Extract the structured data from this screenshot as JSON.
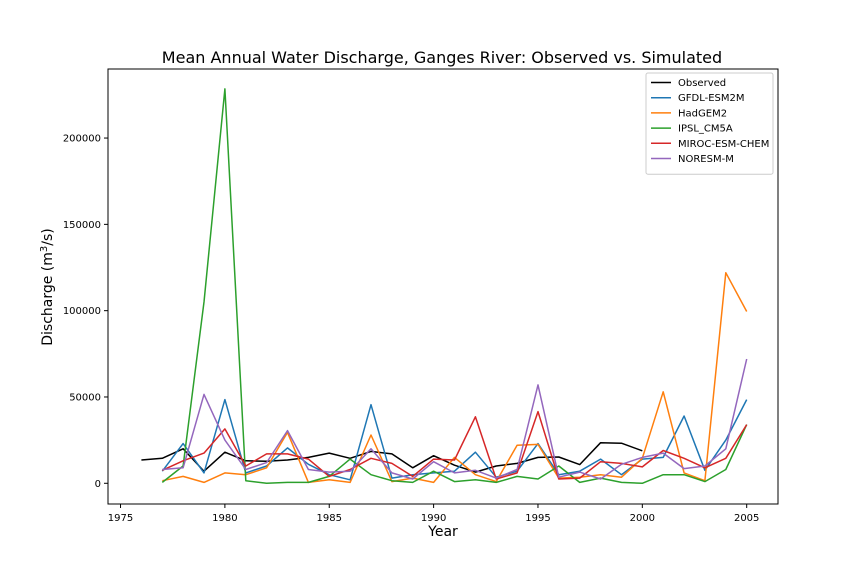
{
  "chart_data": {
    "type": "line",
    "title": "Mean Annual Water Discharge, Ganges River: Observed vs. Simulated",
    "xlabel": "Year",
    "ylabel_main": "Discharge (m",
    "ylabel_sup": "3",
    "ylabel_tail": "/s)",
    "xlim": [
      1974.4,
      2006.5
    ],
    "ylim": [
      -12000,
      240000
    ],
    "xticks": [
      1975,
      1980,
      1985,
      1990,
      1995,
      2000,
      2005
    ],
    "yticks": [
      0,
      50000,
      100000,
      150000,
      200000
    ],
    "legend_position": "top-right",
    "series": [
      {
        "name": "Observed",
        "color": "#000000",
        "x": [
          1976,
          1977,
          1978,
          1979,
          1980,
          1981,
          1982,
          1983,
          1984,
          1985,
          1986,
          1987,
          1988,
          1989,
          1990,
          1991,
          1992,
          1993,
          1994,
          1995,
          1996,
          1997,
          1998,
          1999,
          2000
        ],
        "y": [
          13500,
          14500,
          20000,
          7000,
          18000,
          13000,
          12800,
          13500,
          15000,
          17500,
          14500,
          18500,
          17000,
          9000,
          16000,
          10500,
          6500,
          10000,
          11500,
          15000,
          15200,
          10800,
          23500,
          23200,
          18800
        ]
      },
      {
        "name": "GFDL-ESM2M",
        "color": "#1f77b4",
        "x": [
          1977,
          1978,
          1979,
          1980,
          1981,
          1982,
          1983,
          1984,
          1985,
          1986,
          1987,
          1988,
          1989,
          1990,
          1991,
          1992,
          1993,
          1994,
          1995,
          1996,
          1997,
          1998,
          1999,
          2000,
          2001,
          2002,
          2003,
          2004,
          2005
        ],
        "y": [
          7000,
          23000,
          6000,
          48500,
          6000,
          10000,
          20500,
          11000,
          5000,
          2000,
          45500,
          3000,
          5000,
          6000,
          7000,
          18000,
          3500,
          7000,
          23000,
          5000,
          7000,
          14000,
          5000,
          14000,
          15000,
          39000,
          7500,
          25000,
          48500
        ]
      },
      {
        "name": "HadGEM2",
        "color": "#ff7f0e",
        "x": [
          1977,
          1978,
          1979,
          1980,
          1981,
          1982,
          1983,
          1984,
          1985,
          1986,
          1987,
          1988,
          1989,
          1990,
          1991,
          1992,
          1993,
          1994,
          1995,
          1996,
          1997,
          1998,
          1999,
          2000,
          2001,
          2002,
          2003,
          2004,
          2005
        ],
        "y": [
          1500,
          4000,
          500,
          6000,
          5000,
          9000,
          29500,
          500,
          2000,
          500,
          28000,
          1000,
          3000,
          500,
          15000,
          5000,
          1000,
          22000,
          22500,
          3000,
          3500,
          5000,
          3500,
          14500,
          53000,
          6000,
          1500,
          122000,
          99500
        ]
      },
      {
        "name": "IPSL_CM5A",
        "color": "#2ca02c",
        "x": [
          1977,
          1978,
          1979,
          1980,
          1981,
          1982,
          1983,
          1984,
          1985,
          1986,
          1987,
          1988,
          1989,
          1990,
          1991,
          1992,
          1993,
          1994,
          1995,
          1996,
          1997,
          1998,
          1999,
          2000,
          2001,
          2002,
          2003,
          2004,
          2005
        ],
        "y": [
          500,
          10000,
          105000,
          228500,
          1500,
          0,
          500,
          500,
          4000,
          14000,
          5000,
          1500,
          500,
          7000,
          1000,
          2000,
          500,
          4000,
          2500,
          10000,
          500,
          3000,
          500,
          0,
          5000,
          5000,
          1000,
          8000,
          34000
        ]
      },
      {
        "name": "MIROC-ESM-CHEM",
        "color": "#d62728",
        "x": [
          1977,
          1978,
          1979,
          1980,
          1981,
          1982,
          1983,
          1984,
          1985,
          1986,
          1987,
          1988,
          1989,
          1990,
          1991,
          1992,
          1993,
          1994,
          1995,
          1996,
          1997,
          1998,
          1999,
          2000,
          2001,
          2002,
          2003,
          2004,
          2005
        ],
        "y": [
          7500,
          13000,
          17500,
          31500,
          10000,
          17000,
          17000,
          14000,
          4000,
          8000,
          14500,
          11500,
          4000,
          14000,
          13500,
          38500,
          2500,
          6000,
          41500,
          2500,
          3000,
          12500,
          11500,
          9500,
          19000,
          14500,
          9000,
          14500,
          34000
        ]
      },
      {
        "name": "NORESM-M",
        "color": "#9467bd",
        "x": [
          1977,
          1978,
          1979,
          1980,
          1981,
          1982,
          1983,
          1984,
          1985,
          1986,
          1987,
          1988,
          1989,
          1990,
          1991,
          1992,
          1993,
          1994,
          1995,
          1996,
          1997,
          1998,
          1999,
          2000,
          2001,
          2002,
          2003,
          2004,
          2005
        ],
        "y": [
          8000,
          9000,
          51500,
          25000,
          8000,
          12000,
          30500,
          8000,
          6500,
          7000,
          20000,
          6000,
          2500,
          12500,
          6000,
          7500,
          3000,
          8000,
          57000,
          3500,
          6500,
          2500,
          11000,
          15000,
          17500,
          8500,
          10000,
          20000,
          72000
        ]
      }
    ]
  }
}
